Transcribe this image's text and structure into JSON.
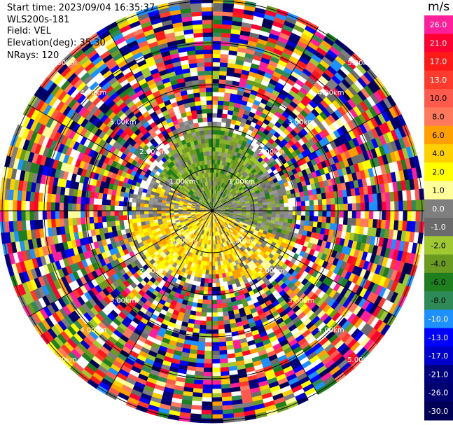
{
  "header": {
    "start_time": "Start time: 2023/09/04 16:35:37",
    "instrument": "WLS200s-181",
    "field": "Field: VEL",
    "elevation": "Elevation(deg): 35.30",
    "nrays": "NRays: 120"
  },
  "colorbar": {
    "unit": "m/s",
    "ticks": [
      "26.0",
      "21.0",
      "17.0",
      "13.0",
      "10.0",
      "8.0",
      "6.0",
      "4.0",
      "2.0",
      "1.0",
      "0.0",
      "-1.0",
      "-2.0",
      "-4.0",
      "-6.0",
      "-8.0",
      "-10.0",
      "-13.0",
      "-17.0",
      "-21.0",
      "-26.0",
      "-30.0"
    ],
    "colors": [
      "#ff1f9a",
      "#ff0033",
      "#ff1a1a",
      "#ff3b2e",
      "#ff5a4d",
      "#ff7a5c",
      "#ffa000",
      "#ffd000",
      "#ffff00",
      "#fffe9a",
      "#7f7f7f",
      "#6b6b6b",
      "#a0c830",
      "#6b9a20",
      "#1f7f1f",
      "#2e8b57",
      "#1e90ff",
      "#0000ff",
      "#0000cd",
      "#00007f",
      "#000070",
      "#000055"
    ]
  },
  "chart_data": {
    "type": "heatmap",
    "subtype": "polar PPI radial velocity",
    "field": "VEL",
    "units": "m/s",
    "nrays": 120,
    "vmin": -30.0,
    "vmax": 26.0,
    "range_rings_km": [
      1.0,
      2.0,
      3.0,
      4.0,
      5.0
    ],
    "ring_labels": [
      "1.00km",
      "2.00km",
      "3.00km",
      "4.00km",
      "5.00km"
    ],
    "inner_pattern": {
      "north_sector": "greens (-2 to -6 m/s)",
      "south_sector": "yellows/oranges (2 to 6 m/s)",
      "east_west": "greys (near 0 m/s)"
    },
    "outer_pattern": "noise, full color range"
  }
}
